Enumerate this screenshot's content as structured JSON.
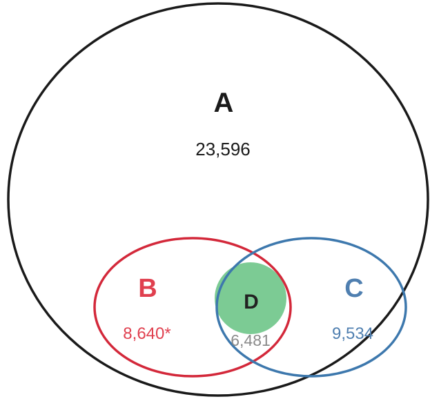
{
  "diagram": {
    "type": "venn",
    "sets": [
      {
        "id": "A",
        "label": "A",
        "count": "23,596",
        "color": "#1a1a1a",
        "stroke": "#1a1a1a"
      },
      {
        "id": "B",
        "label": "B",
        "count": "8,640*",
        "color": "#e0404f",
        "stroke": "#d3283a"
      },
      {
        "id": "C",
        "label": "C",
        "count": "9,534",
        "color": "#4f7fb0",
        "stroke": "#3d78ad"
      },
      {
        "id": "D",
        "label": "D",
        "count": "6,481",
        "color": "#222222",
        "fill": "#7ccb94",
        "count_color": "#8a8a8a"
      }
    ],
    "relations": [
      "B is a subset of A",
      "C overlaps A",
      "B overlaps C",
      "D lies in the intersection of B and C"
    ]
  }
}
